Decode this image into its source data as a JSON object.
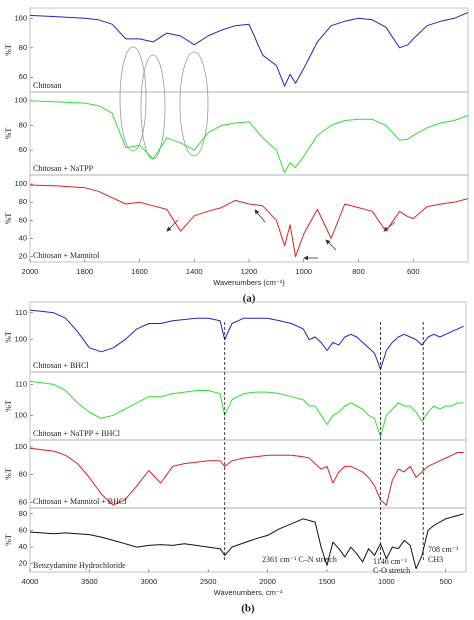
{
  "chart_data": [
    {
      "type": "line",
      "ylabel": "%T",
      "x": [
        2000,
        1900,
        1800,
        1750,
        1700,
        1650,
        1600,
        1550,
        1500,
        1450,
        1400,
        1350,
        1300,
        1250,
        1200,
        1150,
        1100,
        1070,
        1050,
        1030,
        1000,
        950,
        900,
        850,
        800,
        750,
        700,
        650,
        620,
        600,
        550,
        500,
        450,
        400
      ],
      "xlim": [
        2000,
        400
      ],
      "ylim": [
        50,
        107
      ],
      "yticks": [
        100,
        80,
        60
      ],
      "series": [
        {
          "name": "Chitosan",
          "color": "#2323c8",
          "values": [
            102,
            101,
            100,
            99,
            96,
            86,
            86,
            84,
            90,
            88,
            82,
            88,
            92,
            95,
            96,
            75,
            68,
            54,
            62,
            56,
            66,
            84,
            95,
            98,
            100,
            99,
            94,
            80,
            82,
            86,
            95,
            98,
            100,
            104
          ]
        }
      ]
    },
    {
      "type": "line",
      "ylabel": "%T",
      "x": [
        2000,
        1900,
        1800,
        1750,
        1700,
        1650,
        1600,
        1550,
        1500,
        1450,
        1400,
        1350,
        1300,
        1250,
        1200,
        1150,
        1100,
        1070,
        1050,
        1030,
        1000,
        950,
        900,
        850,
        800,
        750,
        700,
        650,
        620,
        600,
        550,
        500,
        450,
        400
      ],
      "xlim": [
        2000,
        400
      ],
      "ylim": [
        40,
        107
      ],
      "yticks": [
        100,
        80,
        60
      ],
      "series": [
        {
          "name": "Chitosan + NaTPP",
          "color": "#2ee02e",
          "values": [
            100,
            99,
            98,
            96,
            90,
            62,
            64,
            53,
            70,
            66,
            60,
            74,
            80,
            82,
            83,
            70,
            60,
            42,
            50,
            46,
            55,
            72,
            80,
            84,
            85,
            85,
            80,
            68,
            69,
            72,
            78,
            82,
            84,
            88
          ]
        }
      ]
    },
    {
      "type": "line",
      "ylabel": "%T",
      "x": [
        2000,
        1900,
        1800,
        1750,
        1700,
        1650,
        1600,
        1550,
        1500,
        1450,
        1400,
        1350,
        1300,
        1250,
        1200,
        1150,
        1100,
        1070,
        1050,
        1030,
        1000,
        950,
        900,
        850,
        800,
        750,
        700,
        650,
        620,
        600,
        550,
        500,
        450,
        400
      ],
      "xlim": [
        2000,
        400
      ],
      "ylim": [
        14,
        110
      ],
      "yticks": [
        100,
        80,
        60,
        40,
        20
      ],
      "xticks": [
        2000,
        1800,
        1600,
        1400,
        1200,
        1000,
        800,
        600
      ],
      "xlabel": "Wavenumbers  (cm⁻¹)",
      "panel_label": "(a)",
      "series": [
        {
          "name": "Chitosan + Mannitol",
          "color": "#e02222",
          "values": [
            99,
            98,
            96,
            92,
            85,
            78,
            80,
            76,
            72,
            48,
            65,
            70,
            74,
            82,
            78,
            76,
            60,
            32,
            55,
            20,
            45,
            72,
            40,
            78,
            74,
            70,
            48,
            70,
            64,
            62,
            75,
            78,
            80,
            84
          ]
        }
      ]
    },
    {
      "type": "line",
      "ylabel": "%T",
      "x": [
        4000,
        3900,
        3800,
        3700,
        3600,
        3500,
        3400,
        3300,
        3200,
        3100,
        3000,
        2900,
        2800,
        2700,
        2600,
        2500,
        2400,
        2361,
        2300,
        2200,
        2100,
        2000,
        1900,
        1800,
        1700,
        1650,
        1600,
        1550,
        1500,
        1450,
        1400,
        1350,
        1300,
        1250,
        1200,
        1150,
        1100,
        1050,
        1000,
        950,
        900,
        850,
        800,
        750,
        700,
        650,
        600,
        550,
        500,
        450,
        400,
        350
      ],
      "xlim": [
        4000,
        330
      ],
      "ylim": [
        88,
        114
      ],
      "yticks": [
        110,
        100
      ],
      "series": [
        {
          "name": "Chitosan + BHCl",
          "color": "#2323c8",
          "values": [
            111,
            110.5,
            110,
            108,
            103,
            97,
            95.5,
            97,
            100,
            104,
            106,
            106,
            107,
            107.5,
            108,
            108,
            107,
            100,
            106,
            108,
            108,
            108,
            107,
            106,
            104,
            100,
            101,
            99,
            96,
            99,
            98,
            101,
            102,
            101,
            99,
            97,
            95,
            89,
            96,
            99,
            101,
            102,
            101,
            100,
            98,
            101,
            102,
            101,
            102,
            103,
            104,
            105
          ]
        }
      ]
    },
    {
      "type": "line",
      "ylabel": "%T",
      "x": [
        4000,
        3900,
        3800,
        3700,
        3600,
        3500,
        3400,
        3300,
        3200,
        3100,
        3000,
        2900,
        2800,
        2700,
        2600,
        2500,
        2400,
        2361,
        2300,
        2200,
        2100,
        2000,
        1900,
        1800,
        1700,
        1650,
        1600,
        1550,
        1500,
        1450,
        1400,
        1350,
        1300,
        1250,
        1200,
        1150,
        1100,
        1050,
        1000,
        950,
        900,
        850,
        800,
        750,
        700,
        650,
        600,
        550,
        500,
        450,
        400,
        350
      ],
      "xlim": [
        4000,
        330
      ],
      "ylim": [
        92,
        114
      ],
      "yticks": [
        110,
        100
      ],
      "series": [
        {
          "name": "Chitosan + NaTPP + BHCl",
          "color": "#2ee02e",
          "values": [
            111,
            110.5,
            110,
            108,
            104,
            101,
            99,
            100,
            102,
            104,
            106,
            106,
            107,
            107.5,
            108,
            108,
            107,
            100,
            105,
            107,
            107.5,
            107.5,
            107,
            106,
            105,
            103,
            103,
            100,
            97,
            100,
            101,
            103,
            104,
            103,
            102,
            100,
            99,
            93,
            100,
            102,
            104,
            103,
            103,
            101,
            98,
            101,
            103,
            102,
            103,
            103,
            104,
            104
          ]
        }
      ]
    },
    {
      "type": "line",
      "ylabel": "%T",
      "x": [
        4000,
        3900,
        3800,
        3700,
        3600,
        3500,
        3400,
        3300,
        3200,
        3100,
        3000,
        2900,
        2800,
        2700,
        2600,
        2500,
        2400,
        2361,
        2300,
        2200,
        2100,
        2000,
        1900,
        1800,
        1700,
        1650,
        1600,
        1550,
        1500,
        1450,
        1400,
        1350,
        1300,
        1250,
        1200,
        1150,
        1100,
        1050,
        1000,
        950,
        900,
        850,
        800,
        750,
        700,
        650,
        600,
        550,
        500,
        450,
        400,
        350
      ],
      "xlim": [
        4000,
        330
      ],
      "ylim": [
        56,
        105
      ],
      "yticks": [
        100,
        80,
        60
      ],
      "series": [
        {
          "name": "Chitosan + Mannitol + BHCl",
          "color": "#e02222",
          "values": [
            99,
            98,
            97,
            94,
            88,
            78,
            66,
            58,
            62,
            72,
            83,
            74,
            86,
            88,
            89,
            90,
            90,
            86,
            90,
            92,
            93,
            94,
            94,
            94,
            93,
            92,
            88,
            84,
            86,
            74,
            82,
            86,
            86,
            84,
            82,
            78,
            72,
            62,
            58,
            76,
            84,
            82,
            86,
            78,
            82,
            86,
            88,
            90,
            92,
            94,
            96,
            96
          ]
        }
      ]
    },
    {
      "type": "line",
      "ylabel": "%T",
      "x": [
        4000,
        3900,
        3800,
        3700,
        3600,
        3500,
        3400,
        3300,
        3200,
        3100,
        3000,
        2900,
        2800,
        2700,
        2600,
        2500,
        2400,
        2361,
        2300,
        2200,
        2100,
        2000,
        1900,
        1800,
        1700,
        1650,
        1600,
        1550,
        1500,
        1450,
        1400,
        1350,
        1300,
        1250,
        1200,
        1150,
        1100,
        1050,
        1000,
        950,
        900,
        850,
        800,
        750,
        700,
        650,
        600,
        550,
        500,
        450,
        400,
        350
      ],
      "xlim": [
        4000,
        330
      ],
      "ylim": [
        10,
        87
      ],
      "yticks": [
        80,
        60,
        40,
        20
      ],
      "xticks": [
        4000,
        3500,
        3000,
        2500,
        2000,
        1500,
        1000,
        500
      ],
      "xlabel": "Wavenumbers,  cm⁻¹",
      "panel_label": "(b)",
      "vlines": [
        2361,
        1050,
        690
      ],
      "annotations": [
        "2361 cm⁻¹ C–N stretch",
        "1146 cm⁻¹",
        "C-O stretch",
        "708 cm⁻¹",
        "CH3"
      ],
      "series": [
        {
          "name": "Benzydamine  Hydrochloride",
          "color": "#111111",
          "values": [
            58,
            57,
            56,
            57,
            56,
            55,
            52,
            48,
            44,
            40,
            42,
            43,
            42,
            44,
            42,
            40,
            38,
            30,
            40,
            45,
            50,
            54,
            62,
            68,
            74,
            72,
            70,
            40,
            18,
            46,
            38,
            28,
            40,
            32,
            22,
            38,
            30,
            44,
            26,
            40,
            38,
            48,
            42,
            14,
            30,
            60,
            66,
            70,
            74,
            76,
            78,
            80
          ]
        }
      ]
    }
  ]
}
